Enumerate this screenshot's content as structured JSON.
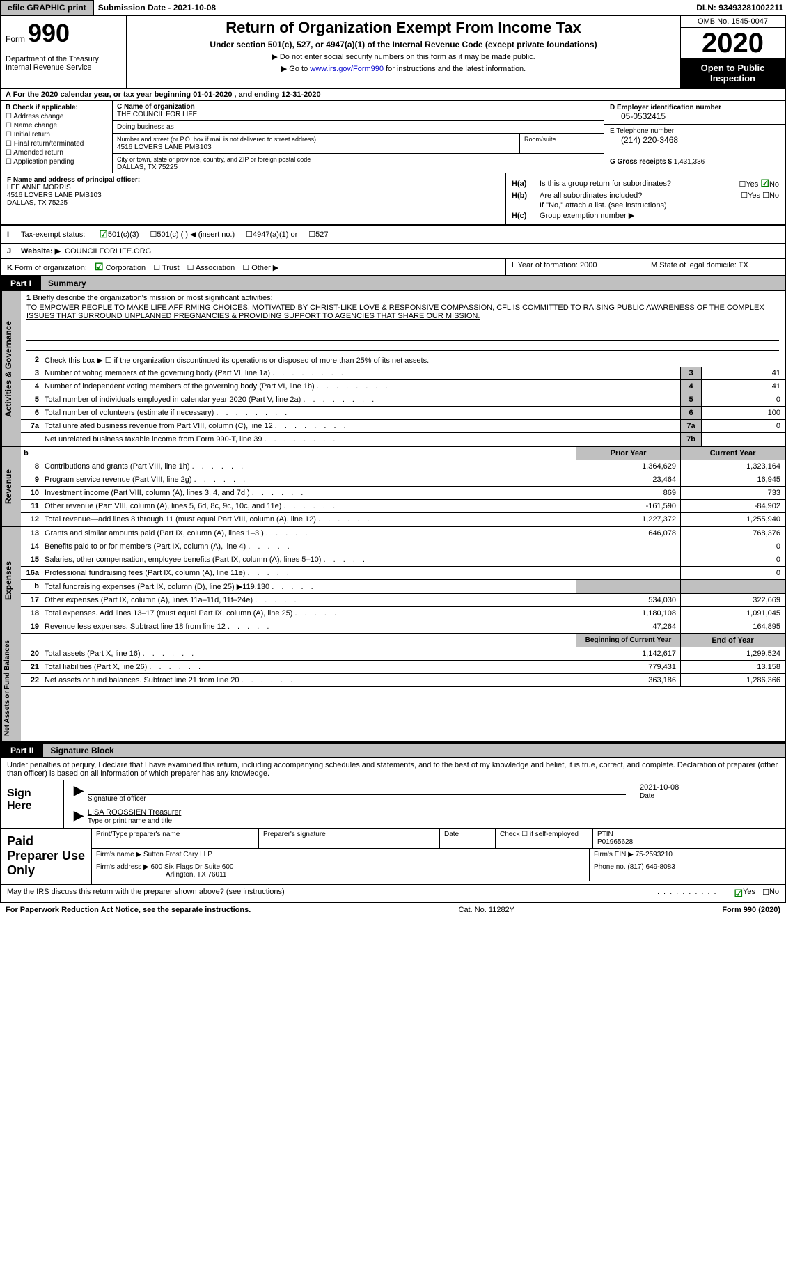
{
  "top": {
    "efile_btn": "efile GRAPHIC print",
    "submission": "Submission Date - 2021-10-08",
    "dln": "DLN: 93493281002211"
  },
  "header": {
    "form_label": "Form",
    "form_num": "990",
    "dept": "Department of the Treasury\nInternal Revenue Service",
    "title": "Return of Organization Exempt From Income Tax",
    "subtitle": "Under section 501(c), 527, or 4947(a)(1) of the Internal Revenue Code (except private foundations)",
    "line1": "▶ Do not enter social security numbers on this form as it may be made public.",
    "line2_pre": "▶ Go to ",
    "line2_link": "www.irs.gov/Form990",
    "line2_post": " for instructions and the latest information.",
    "omb": "OMB No. 1545-0047",
    "year": "2020",
    "open_public": "Open to Public Inspection"
  },
  "row_a": "A For the 2020 calendar year, or tax year beginning 01-01-2020    , and ending 12-31-2020",
  "box_b": {
    "title": "B Check if applicable:",
    "items": [
      "Address change",
      "Name change",
      "Initial return",
      "Final return/terminated",
      "Amended return",
      "Application pending"
    ]
  },
  "box_c": {
    "name_lbl": "C Name of organization",
    "name_val": "THE COUNCIL FOR LIFE",
    "dba_lbl": "Doing business as",
    "addr_lbl": "Number and street (or P.O. box if mail is not delivered to street address)",
    "room_lbl": "Room/suite",
    "addr_val": "4516 LOVERS LANE PMB103",
    "city_lbl": "City or town, state or province, country, and ZIP or foreign postal code",
    "city_val": "DALLAS, TX   75225"
  },
  "box_d": {
    "lbl": "D Employer identification number",
    "val": "05-0532415"
  },
  "box_e": {
    "lbl": "E Telephone number",
    "val": "(214) 220-3468"
  },
  "box_g": {
    "lbl": "G Gross receipts $",
    "val": "1,431,336"
  },
  "box_f": {
    "lbl": "F  Name and address of principal officer:",
    "name": "LEE ANNE MORRIS",
    "addr1": "4516 LOVERS LANE PMB103",
    "addr2": "DALLAS, TX  75225"
  },
  "box_h": {
    "a_lbl": "H(a)",
    "a_text": "Is this a group return for subordinates?",
    "a_yes": "Yes",
    "a_no": "No",
    "b_lbl": "H(b)",
    "b_text": "Are all subordinates included?",
    "b_note": "If \"No,\" attach a list. (see instructions)",
    "c_lbl": "H(c)",
    "c_text": "Group exemption number ▶"
  },
  "row_i": {
    "pre": "I",
    "text": "Tax-exempt status:",
    "opts": [
      "501(c)(3)",
      "501(c) (  ) ◀ (insert no.)",
      "4947(a)(1) or",
      "527"
    ]
  },
  "row_j": {
    "pre": "J",
    "text": "Website: ▶",
    "val": "COUNCILFORLIFE.ORG"
  },
  "row_k": {
    "pre": "K",
    "text": "Form of organization:",
    "opts": [
      "Corporation",
      "Trust",
      "Association",
      "Other ▶"
    ]
  },
  "row_lm": {
    "l": "L Year of formation: 2000",
    "m": "M State of legal domicile: TX"
  },
  "part1": {
    "label": "Part I",
    "title": "Summary"
  },
  "summary": {
    "line1_lbl": "1",
    "line1_text": "Briefly describe the organization's mission or most significant activities:",
    "mission": "TO EMPOWER PEOPLE TO MAKE LIFE AFFIRMING CHOICES. MOTIVATED BY CHRIST-LIKE LOVE & RESPONSIVE COMPASSION, CFL IS COMMITTED TO RAISING PUBLIC AWARENESS OF THE COMPLEX ISSUES THAT SURROUND UNPLANNED PREGNANCIES & PROVIDING SUPPORT TO AGENCIES THAT SHARE OUR MISSION.",
    "line2": "Check this box ▶ ☐  if the organization discontinued its operations or disposed of more than 25% of its net assets.",
    "rows_gov": [
      {
        "n": "3",
        "t": "Number of voting members of the governing body (Part VI, line 1a)",
        "box": "3",
        "v": "41"
      },
      {
        "n": "4",
        "t": "Number of independent voting members of the governing body (Part VI, line 1b)",
        "box": "4",
        "v": "41"
      },
      {
        "n": "5",
        "t": "Total number of individuals employed in calendar year 2020 (Part V, line 2a)",
        "box": "5",
        "v": "0"
      },
      {
        "n": "6",
        "t": "Total number of volunteers (estimate if necessary)",
        "box": "6",
        "v": "100"
      },
      {
        "n": "7a",
        "t": "Total unrelated business revenue from Part VIII, column (C), line 12",
        "box": "7a",
        "v": "0"
      },
      {
        "n": "",
        "t": "Net unrelated business taxable income from Form 990-T, line 39",
        "box": "7b",
        "v": ""
      }
    ],
    "rev_hdr": {
      "b": "b",
      "py": "Prior Year",
      "cy": "Current Year"
    },
    "rows_rev": [
      {
        "n": "8",
        "t": "Contributions and grants (Part VIII, line 1h)",
        "py": "1,364,629",
        "cy": "1,323,164"
      },
      {
        "n": "9",
        "t": "Program service revenue (Part VIII, line 2g)",
        "py": "23,464",
        "cy": "16,945"
      },
      {
        "n": "10",
        "t": "Investment income (Part VIII, column (A), lines 3, 4, and 7d )",
        "py": "869",
        "cy": "733"
      },
      {
        "n": "11",
        "t": "Other revenue (Part VIII, column (A), lines 5, 6d, 8c, 9c, 10c, and 11e)",
        "py": "-161,590",
        "cy": "-84,902"
      },
      {
        "n": "12",
        "t": "Total revenue—add lines 8 through 11 (must equal Part VIII, column (A), line 12)",
        "py": "1,227,372",
        "cy": "1,255,940"
      }
    ],
    "rows_exp": [
      {
        "n": "13",
        "t": "Grants and similar amounts paid (Part IX, column (A), lines 1–3 )",
        "py": "646,078",
        "cy": "768,376"
      },
      {
        "n": "14",
        "t": "Benefits paid to or for members (Part IX, column (A), line 4)",
        "py": "",
        "cy": "0"
      },
      {
        "n": "15",
        "t": "Salaries, other compensation, employee benefits (Part IX, column (A), lines 5–10)",
        "py": "",
        "cy": "0"
      },
      {
        "n": "16a",
        "t": "Professional fundraising fees (Part IX, column (A), line 11e)",
        "py": "",
        "cy": "0"
      },
      {
        "n": "b",
        "t": "Total fundraising expenses (Part IX, column (D), line 25) ▶119,130",
        "py": "GREY",
        "cy": "GREY"
      },
      {
        "n": "17",
        "t": "Other expenses (Part IX, column (A), lines 11a–11d, 11f–24e)",
        "py": "534,030",
        "cy": "322,669"
      },
      {
        "n": "18",
        "t": "Total expenses. Add lines 13–17 (must equal Part IX, column (A), line 25)",
        "py": "1,180,108",
        "cy": "1,091,045"
      },
      {
        "n": "19",
        "t": "Revenue less expenses. Subtract line 18 from line 12",
        "py": "47,264",
        "cy": "164,895"
      }
    ],
    "net_hdr": {
      "py": "Beginning of Current Year",
      "cy": "End of Year"
    },
    "rows_net": [
      {
        "n": "20",
        "t": "Total assets (Part X, line 16)",
        "py": "1,142,617",
        "cy": "1,299,524"
      },
      {
        "n": "21",
        "t": "Total liabilities (Part X, line 26)",
        "py": "779,431",
        "cy": "13,158"
      },
      {
        "n": "22",
        "t": "Net assets or fund balances. Subtract line 21 from line 20",
        "py": "363,186",
        "cy": "1,286,366"
      }
    ]
  },
  "part2": {
    "label": "Part II",
    "title": "Signature Block"
  },
  "sig": {
    "intro": "Under penalties of perjury, I declare that I have examined this return, including accompanying schedules and statements, and to the best of my knowledge and belief, it is true, correct, and complete. Declaration of preparer (other than officer) is based on all information of which preparer has any knowledge.",
    "sign_here": "Sign Here",
    "sig_officer": "Signature of officer",
    "date": "Date",
    "date_val": "2021-10-08",
    "name_val": "LISA ROOSSIEN  Treasurer",
    "name_lbl": "Type or print name and title"
  },
  "prep": {
    "title": "Paid Preparer Use Only",
    "h1": "Print/Type preparer's name",
    "h2": "Preparer's signature",
    "h3": "Date",
    "h4_a": "Check ☐ if self-employed",
    "h4_b": "PTIN",
    "ptin": "P01965628",
    "firm_name_lbl": "Firm's name    ▶",
    "firm_name": "Sutton Frost Cary LLP",
    "firm_ein_lbl": "Firm's EIN ▶",
    "firm_ein": "75-2593210",
    "firm_addr_lbl": "Firm's address ▶",
    "firm_addr": "600 Six Flags Dr Suite 600",
    "firm_city": "Arlington, TX  76011",
    "phone_lbl": "Phone no.",
    "phone": "(817) 649-8083"
  },
  "footer": {
    "discuss": "May the IRS discuss this return with the preparer shown above? (see instructions)",
    "yes": "Yes",
    "no": "No",
    "paperwork": "For Paperwork Reduction Act Notice, see the separate instructions.",
    "cat": "Cat. No. 11282Y",
    "form": "Form 990 (2020)"
  },
  "vert": {
    "gov": "Activities & Governance",
    "rev": "Revenue",
    "exp": "Expenses",
    "net": "Net Assets or Fund Balances"
  }
}
